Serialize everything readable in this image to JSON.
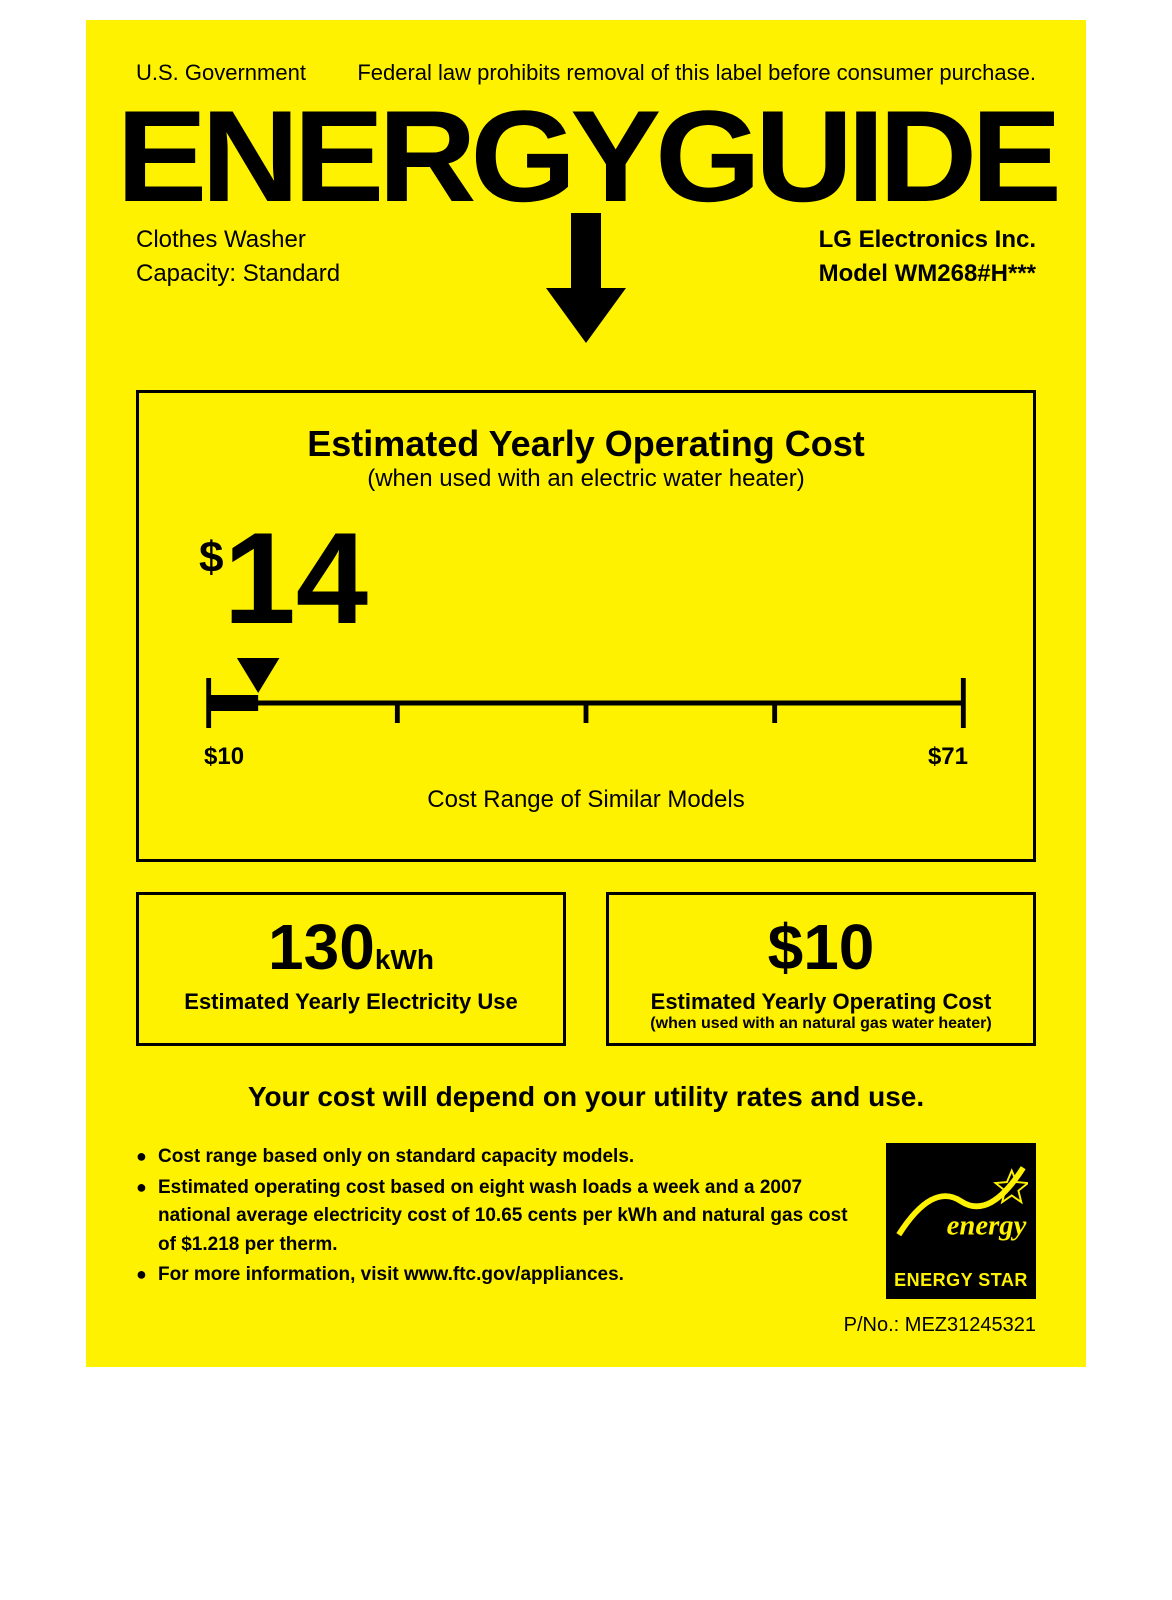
{
  "header": {
    "left": "U.S. Government",
    "right": "Federal law prohibits removal of this label before consumer purchase."
  },
  "logo": "ENERGYGUIDE",
  "product": {
    "type": "Clothes Washer",
    "capacity": "Capacity: Standard",
    "manufacturer": "LG Electronics Inc.",
    "model": "Model WM268#H***"
  },
  "costbox": {
    "title": "Estimated Yearly Operating Cost",
    "subtitle": "(when used with an electric water heater)",
    "currency": "$",
    "value": "14",
    "scale": {
      "min_label": "$10",
      "max_label": "$71",
      "min": 10,
      "max": 71,
      "value": 14,
      "caption": "Cost Range of Similar Models",
      "tick_count": 5,
      "line_color": "#000000",
      "line_width": 5,
      "tick_height": 30
    }
  },
  "twin": {
    "left": {
      "value": "130",
      "unit": "kWh",
      "label": "Estimated Yearly Electricity Use"
    },
    "right": {
      "value": "$10",
      "label": "Estimated Yearly Operating Cost",
      "sublabel": "(when used with an natural gas water heater)"
    }
  },
  "depend": "Your cost will depend on your utility rates and use.",
  "bullets": [
    "Cost range based only on standard capacity models.",
    "Estimated operating cost based on eight  wash loads a week and a 2007 national average electricity cost of 10.65 cents per kWh and natural gas cost of $1.218 per therm.",
    "For more information, visit www.ftc.gov/appliances."
  ],
  "energy_star": {
    "text": "ENERGY STAR"
  },
  "pno": "P/No.: MEZ31245321",
  "colors": {
    "background": "#fff200",
    "text": "#000000",
    "energy_star_bg": "#000000",
    "energy_star_fg": "#fff200"
  }
}
